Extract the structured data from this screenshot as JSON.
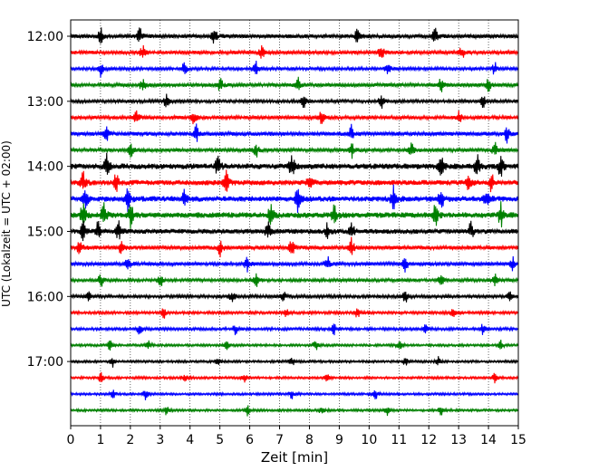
{
  "chart_data": {
    "type": "line",
    "title": "",
    "xlabel": "Zeit  [min]",
    "ylabel": "UTC (Lokalzeit = UTC + 02:00)",
    "xlim": [
      0,
      15
    ],
    "x_ticks": [
      "0",
      "1",
      "2",
      "3",
      "4",
      "5",
      "6",
      "7",
      "8",
      "9",
      "10",
      "11",
      "12",
      "13",
      "14",
      "15"
    ],
    "y_tick_labels": [
      "12:00",
      "13:00",
      "14:00",
      "15:00",
      "16:00",
      "17:00"
    ],
    "grid": "vertical dotted",
    "trace_interval_minutes": 15,
    "trace_colors": [
      "#000000",
      "#ff0000",
      "#0000ff",
      "#008000"
    ],
    "series": [
      {
        "start": "12:00",
        "amplitude": 1.0,
        "events": [
          1.0,
          2.3,
          4.8,
          9.6,
          12.2
        ]
      },
      {
        "start": "12:15",
        "amplitude": 0.9,
        "events": [
          2.4,
          6.4,
          10.4,
          13.1
        ]
      },
      {
        "start": "12:30",
        "amplitude": 0.8,
        "events": [
          1.0,
          3.8,
          6.2,
          10.6,
          14.2
        ]
      },
      {
        "start": "12:45",
        "amplitude": 0.9,
        "events": [
          2.4,
          5.0,
          7.6,
          12.4,
          14.0
        ]
      },
      {
        "start": "13:00",
        "amplitude": 0.8,
        "events": [
          3.2,
          7.8,
          10.4,
          13.8
        ]
      },
      {
        "start": "13:15",
        "amplitude": 0.9,
        "events": [
          2.2,
          4.1,
          8.4,
          13.0
        ]
      },
      {
        "start": "13:30",
        "amplitude": 1.0,
        "events": [
          1.2,
          4.2,
          9.4,
          14.6
        ]
      },
      {
        "start": "13:45",
        "amplitude": 0.9,
        "events": [
          2.0,
          6.2,
          9.4,
          11.4,
          14.2
        ]
      },
      {
        "start": "14:00",
        "amplitude": 1.4,
        "events": [
          1.2,
          4.9,
          7.4,
          12.4,
          13.6,
          14.4
        ]
      },
      {
        "start": "14:15",
        "amplitude": 1.3,
        "events": [
          0.4,
          1.5,
          5.2,
          8.0,
          13.3,
          14.1
        ]
      },
      {
        "start": "14:30",
        "amplitude": 1.4,
        "events": [
          0.5,
          1.9,
          3.8,
          7.6,
          10.8,
          12.4,
          13.9
        ]
      },
      {
        "start": "14:45",
        "amplitude": 1.4,
        "events": [
          0.4,
          1.1,
          2.0,
          6.7,
          8.8,
          12.2,
          14.4
        ]
      },
      {
        "start": "15:00",
        "amplitude": 1.2,
        "events": [
          0.4,
          0.9,
          1.6,
          6.6,
          8.6,
          9.4,
          13.4
        ]
      },
      {
        "start": "15:15",
        "amplitude": 1.0,
        "events": [
          0.3,
          1.7,
          5.0,
          7.4,
          9.4
        ]
      },
      {
        "start": "15:30",
        "amplitude": 0.9,
        "events": [
          1.9,
          5.9,
          8.6,
          11.2,
          14.8
        ]
      },
      {
        "start": "15:45",
        "amplitude": 0.8,
        "events": [
          1.0,
          3.0,
          6.2,
          12.4,
          14.2
        ]
      },
      {
        "start": "16:00",
        "amplitude": 0.8,
        "events": [
          0.6,
          5.4,
          7.1,
          11.2,
          14.7
        ]
      },
      {
        "start": "16:15",
        "amplitude": 0.7,
        "events": [
          3.1,
          7.2,
          9.6,
          12.8
        ]
      },
      {
        "start": "16:30",
        "amplitude": 0.7,
        "events": [
          2.3,
          5.5,
          8.8,
          11.9,
          13.8
        ]
      },
      {
        "start": "16:45",
        "amplitude": 0.6,
        "events": [
          1.3,
          2.6,
          5.2,
          8.2,
          11.0,
          14.4
        ]
      },
      {
        "start": "17:00",
        "amplitude": 0.6,
        "events": [
          1.4,
          4.9,
          7.4,
          11.2,
          12.3
        ]
      },
      {
        "start": "17:15",
        "amplitude": 0.6,
        "events": [
          1.0,
          3.8,
          5.8,
          8.6,
          14.2
        ]
      },
      {
        "start": "17:30",
        "amplitude": 0.6,
        "events": [
          1.4,
          2.5,
          7.4,
          10.2
        ]
      },
      {
        "start": "17:45",
        "amplitude": 0.6,
        "events": [
          3.2,
          5.9,
          8.4,
          10.6,
          12.4
        ]
      }
    ]
  }
}
